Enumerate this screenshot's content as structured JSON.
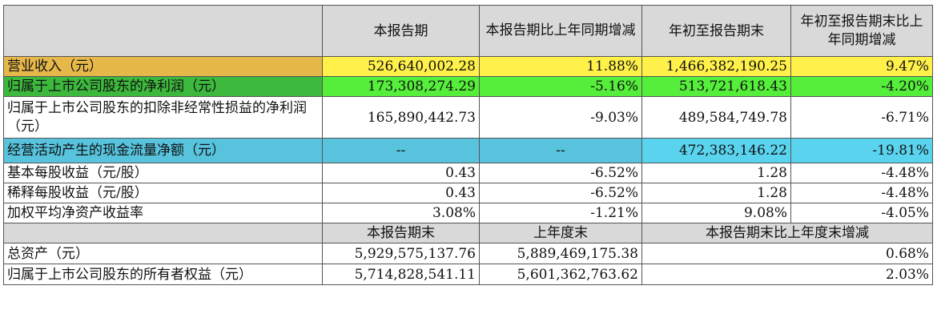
{
  "header": {
    "blank": "",
    "current_period": "本报告期",
    "current_period_yoy": "本报告期比上年同期增减",
    "ytd": "年初至报告期末",
    "ytd_yoy": "年初至报告期末比上年同期增减"
  },
  "rows": [
    {
      "label": "营业收入（元）",
      "current": "526,640,002.28",
      "current_yoy": "11.88%",
      "ytd": "1,466,382,190.25",
      "ytd_yoy": "9.47%"
    },
    {
      "label": "归属于上市公司股东的净利润（元）",
      "current": "173,308,274.29",
      "current_yoy": "-5.16%",
      "ytd": "513,721,618.43",
      "ytd_yoy": "-4.20%"
    },
    {
      "label": "归属于上市公司股东的扣除非经常性损益的净利润（元）",
      "current": "165,890,442.73",
      "current_yoy": "-9.03%",
      "ytd": "489,584,749.78",
      "ytd_yoy": "-6.71%"
    },
    {
      "label": "经营活动产生的现金流量净额（元）",
      "current": "--",
      "current_yoy": "--",
      "ytd": "472,383,146.22",
      "ytd_yoy": "-19.81%"
    },
    {
      "label": "基本每股收益（元/股）",
      "current": "0.43",
      "current_yoy": "-6.52%",
      "ytd": "1.28",
      "ytd_yoy": "-4.48%"
    },
    {
      "label": "稀释每股收益（元/股）",
      "current": "0.43",
      "current_yoy": "-6.52%",
      "ytd": "1.28",
      "ytd_yoy": "-4.48%"
    },
    {
      "label": "加权平均净资产收益率",
      "current": "3.08%",
      "current_yoy": "-1.21%",
      "ytd": "9.08%",
      "ytd_yoy": "-4.05%"
    }
  ],
  "subheader": {
    "blank": "",
    "period_end": "本报告期末",
    "prior_year_end": "上年度末",
    "change": "本报告期末比上年度末增减"
  },
  "balance_rows": [
    {
      "label": "总资产（元）",
      "period_end": "5,929,575,137.76",
      "prior_year_end": "5,889,469,175.38",
      "change": "0.68%"
    },
    {
      "label": "归属于上市公司股东的所有者权益（元）",
      "period_end": "5,714,828,541.11",
      "prior_year_end": "5,601,362,763.62",
      "change": "2.03%"
    }
  ],
  "highlight_colors": {
    "revenue_label": "#e6b84a",
    "revenue_values": "#fff04a",
    "net_profit_label": "#3cb83c",
    "net_profit_values": "#55ee3a",
    "cash_flow_label": "#57c3dc",
    "cash_flow_values": "#5ad4ee",
    "header": "#d9d9d9"
  }
}
